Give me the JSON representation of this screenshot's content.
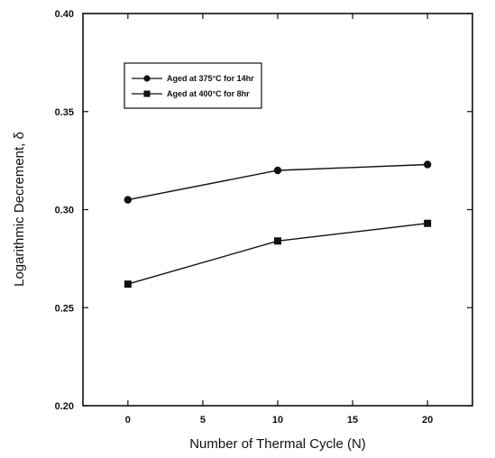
{
  "chart_data": {
    "type": "line",
    "title": "",
    "xlabel": "Number of Thermal Cycle  (N)",
    "ylabel": "Logarithmic Decrement, δ",
    "xlim": [
      -3,
      23
    ],
    "ylim": [
      0.2,
      0.4
    ],
    "xticks": [
      0,
      5,
      10,
      15,
      20
    ],
    "xtick_labels": [
      "0",
      "5",
      "10",
      "15",
      "20"
    ],
    "yticks": [
      0.2,
      0.25,
      0.3,
      0.35,
      0.4
    ],
    "ytick_labels": [
      "0.20",
      "0.25",
      "0.30",
      "0.35",
      "0.40"
    ],
    "grid": false,
    "legend_position": "top-left",
    "series": [
      {
        "name": "Aged at 375°C for 14hr",
        "marker": "circle",
        "color": "#111111",
        "x": [
          0,
          10,
          20
        ],
        "y": [
          0.305,
          0.32,
          0.323
        ]
      },
      {
        "name": "Aged at 400°C for  8hr",
        "marker": "square",
        "color": "#111111",
        "x": [
          0,
          10,
          20
        ],
        "y": [
          0.262,
          0.284,
          0.293
        ]
      }
    ]
  }
}
